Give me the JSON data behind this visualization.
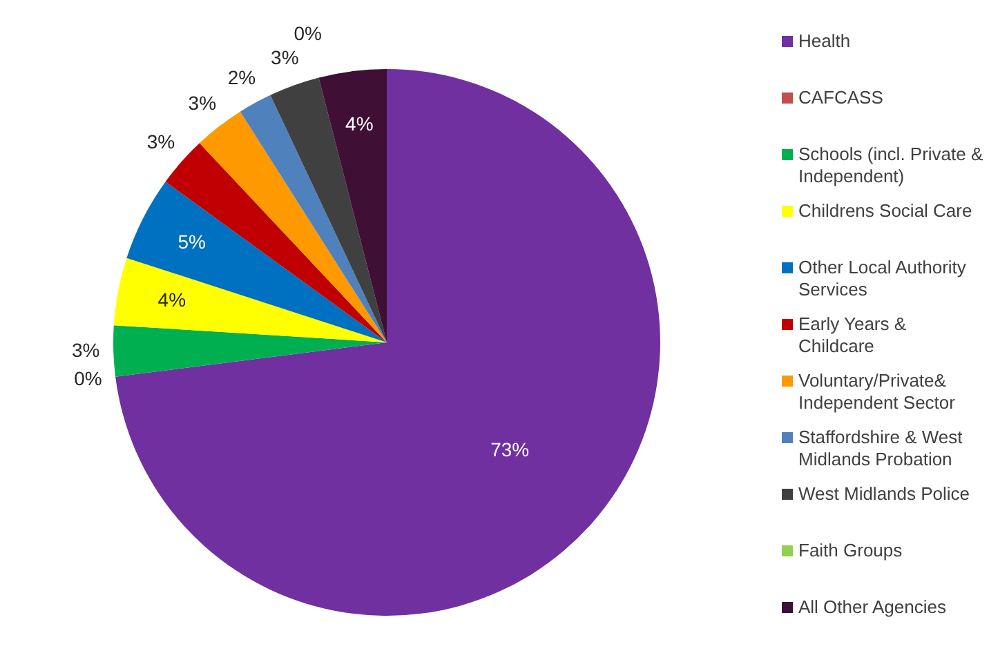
{
  "chart_data": {
    "type": "pie",
    "categories": [
      "Health",
      "CAFCASS",
      "Schools (incl. Private & Independent)",
      "Childrens Social Care",
      "Other Local Authority Services",
      "Early Years & Childcare",
      "Voluntary/Private& Independent Sector",
      "Staffordshire & West Midlands Probation",
      "West Midlands Police",
      "Faith Groups",
      "All Other Agencies"
    ],
    "values": [
      73,
      0,
      3,
      4,
      5,
      3,
      3,
      2,
      3,
      0,
      4
    ],
    "colors": [
      "#7030a0",
      "#c0504d",
      "#00b050",
      "#ffff00",
      "#0070c0",
      "#c00000",
      "#ff9900",
      "#4f81bd",
      "#404040",
      "#92d050",
      "#3f0f35"
    ],
    "value_labels": [
      "73%",
      "0%",
      "3%",
      "4%",
      "5%",
      "3%",
      "3%",
      "2%",
      "3%",
      "0%",
      "4%"
    ],
    "legend": "right"
  }
}
